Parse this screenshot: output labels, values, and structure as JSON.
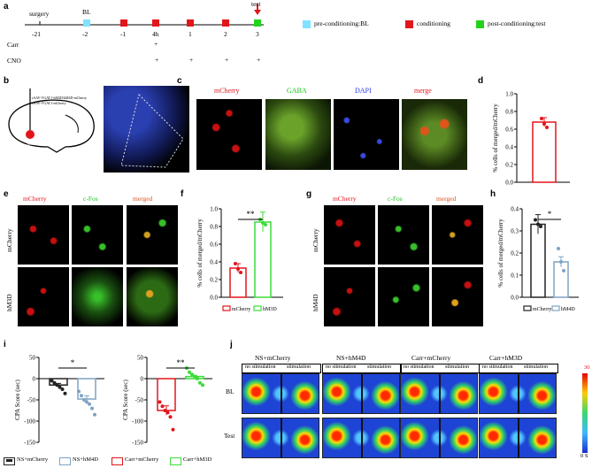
{
  "panels": {
    "a": "a",
    "b": "b",
    "c": "c",
    "d": "d",
    "e": "e",
    "f": "f",
    "g": "g",
    "h": "h",
    "i": "i",
    "j": "j"
  },
  "timeline": {
    "top_labels": {
      "surgery": "surgery",
      "bl": "BL",
      "test": "test"
    },
    "days": [
      "-21",
      "-2",
      "-1",
      "4h",
      "1",
      "2",
      "3"
    ],
    "carr_label": "Carr",
    "cno_label": "CNO",
    "plus": "+",
    "legend": [
      {
        "label": "pre-conditioning:BL",
        "color": "#7fe3ff"
      },
      {
        "label": "conditioning",
        "color": "#e3151b"
      },
      {
        "label": "post-conditioning:test",
        "color": "#23d21c"
      }
    ]
  },
  "brain": {
    "line1": "rAAV-VGAT1-hM3D/hM4D-mCherry",
    "line2": "rAAV-VGAT1-mCherry",
    "region": "AIC"
  },
  "panel_c": {
    "titles": [
      "mCherry",
      "GABA",
      "DAPI",
      "merge"
    ]
  },
  "panel_e": {
    "titles": [
      "mCherry",
      "c-Fos",
      "merged"
    ],
    "rows": [
      "mCherry",
      "hM3D"
    ]
  },
  "panel_g": {
    "titles": [
      "mCherry",
      "c-Fos",
      "merged"
    ],
    "rows": [
      "mCherry",
      "hM4D"
    ]
  },
  "panel_j": {
    "cols": [
      "NS+mCherry",
      "NS+hM4D",
      "Carr+mCherry",
      "Carr+hM3D"
    ],
    "rows": [
      "BL",
      "Test"
    ],
    "no_stim": "no stimulation",
    "stim": "stimulation",
    "scale_max": "30",
    "scale_min": "0 S"
  },
  "legend_i": [
    {
      "label": "NS+mCherry",
      "color": "#222222"
    },
    {
      "label": "NS+hM4D",
      "color": "#7fa3c4"
    },
    {
      "label": "Carr+mCherry",
      "color": "#e3151b"
    },
    {
      "label": "Carr+hM3D",
      "color": "#3ddc3a"
    }
  ],
  "chart_data": [
    {
      "id": "d",
      "type": "bar",
      "ylabel": "% cells of merged/mCherry",
      "ylim": [
        0,
        1.0
      ],
      "yticks": [
        "0.0",
        "0.2",
        "0.4",
        "0.6",
        "0.8",
        "1.0"
      ],
      "categories": [
        ""
      ],
      "values": [
        0.68
      ],
      "error": [
        0.05
      ],
      "points": [
        0.72,
        0.66,
        0.62
      ],
      "color": "#e3151b"
    },
    {
      "id": "f",
      "type": "bar",
      "ylabel": "% cells of merged/mCherry",
      "ylim": [
        0,
        1.0
      ],
      "yticks": [
        "0.0",
        "0.2",
        "0.4",
        "0.6",
        "0.8",
        "1.0"
      ],
      "categories": [
        "mCherry",
        "hM3D"
      ],
      "values": [
        0.33,
        0.85
      ],
      "colors": [
        "#e3151b",
        "#3ddc3a"
      ],
      "sig": "**",
      "points": [
        [
          0.38,
          0.32,
          0.28
        ],
        [
          0.88,
          0.84,
          0.82
        ]
      ]
    },
    {
      "id": "h",
      "type": "bar",
      "ylabel": "% cells of merged/mCherry",
      "ylim": [
        0,
        0.4
      ],
      "yticks": [
        "0.0",
        "0.1",
        "0.2",
        "0.3",
        "0.4"
      ],
      "categories": [
        "mCherry",
        "hM4D"
      ],
      "values": [
        0.33,
        0.16
      ],
      "colors": [
        "#222222",
        "#7fa3c4"
      ],
      "sig": "*",
      "points": [
        [
          0.35,
          0.33,
          0.32
        ],
        [
          0.22,
          0.16,
          0.12
        ]
      ]
    },
    {
      "id": "i1",
      "type": "bar",
      "ylabel": "CPA Score (sec)",
      "ylim": [
        -150,
        50
      ],
      "yticks": [
        "50",
        "0",
        "-50",
        "-100",
        "-150"
      ],
      "categories": [
        "NS+mCherry",
        "NS+hM4D"
      ],
      "values": [
        -15,
        -48
      ],
      "colors": [
        "#222222",
        "#7fa3c4"
      ],
      "sig": "*",
      "points": [
        [
          -5,
          -10,
          -15,
          -20,
          -25,
          -35
        ],
        [
          -30,
          -40,
          -50,
          -55,
          -60,
          -70,
          -85
        ]
      ]
    },
    {
      "id": "i2",
      "type": "bar",
      "ylabel": "CPA Score (sec)",
      "ylim": [
        -150,
        50
      ],
      "yticks": [
        "50",
        "0",
        "-50",
        "-100",
        "-150"
      ],
      "categories": [
        "Carr+mCherry",
        "Carr+hM3D"
      ],
      "values": [
        -75,
        5
      ],
      "colors": [
        "#e3151b",
        "#3ddc3a"
      ],
      "sig": "**",
      "points": [
        [
          -55,
          -65,
          -75,
          -80,
          -90,
          -120
        ],
        [
          25,
          15,
          10,
          5,
          0,
          -10,
          -15
        ]
      ]
    }
  ]
}
